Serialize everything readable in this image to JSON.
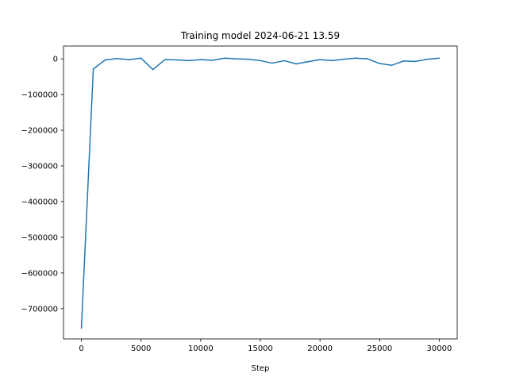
{
  "chart_data": {
    "type": "line",
    "title": "Training model 2024-06-21 13.59",
    "xlabel": "Step",
    "ylabel": "",
    "xlim": [
      -1500,
      31500
    ],
    "ylim": [
      -785000,
      36000
    ],
    "xticks": [
      0,
      5000,
      10000,
      15000,
      20000,
      25000,
      30000
    ],
    "xtick_labels": [
      "0",
      "5000",
      "10000",
      "15000",
      "20000",
      "25000",
      "30000"
    ],
    "yticks": [
      0,
      -100000,
      -200000,
      -300000,
      -400000,
      -500000,
      -600000,
      -700000
    ],
    "ytick_labels": [
      "0",
      "−100000",
      "−200000",
      "−300000",
      "−400000",
      "−500000",
      "−600000",
      "−700000"
    ],
    "grid": false,
    "series": [
      {
        "color": "#1f77b4",
        "x": [
          0,
          1000,
          2000,
          3000,
          4000,
          5000,
          6000,
          7000,
          8000,
          9000,
          10000,
          11000,
          12000,
          13000,
          14000,
          15000,
          16000,
          17000,
          18000,
          19000,
          20000,
          21000,
          22000,
          23000,
          24000,
          25000,
          26000,
          27000,
          28000,
          29000,
          30000
        ],
        "y": [
          -755000,
          -28000,
          -3000,
          1000,
          -2000,
          2000,
          -30000,
          -2000,
          -3000,
          -5000,
          -2000,
          -4000,
          2000,
          0,
          -1000,
          -5000,
          -12000,
          -5000,
          -14000,
          -8000,
          -2000,
          -5000,
          -1000,
          2000,
          0,
          -13000,
          -18000,
          -6000,
          -7000,
          -1000,
          2000
        ]
      }
    ]
  }
}
